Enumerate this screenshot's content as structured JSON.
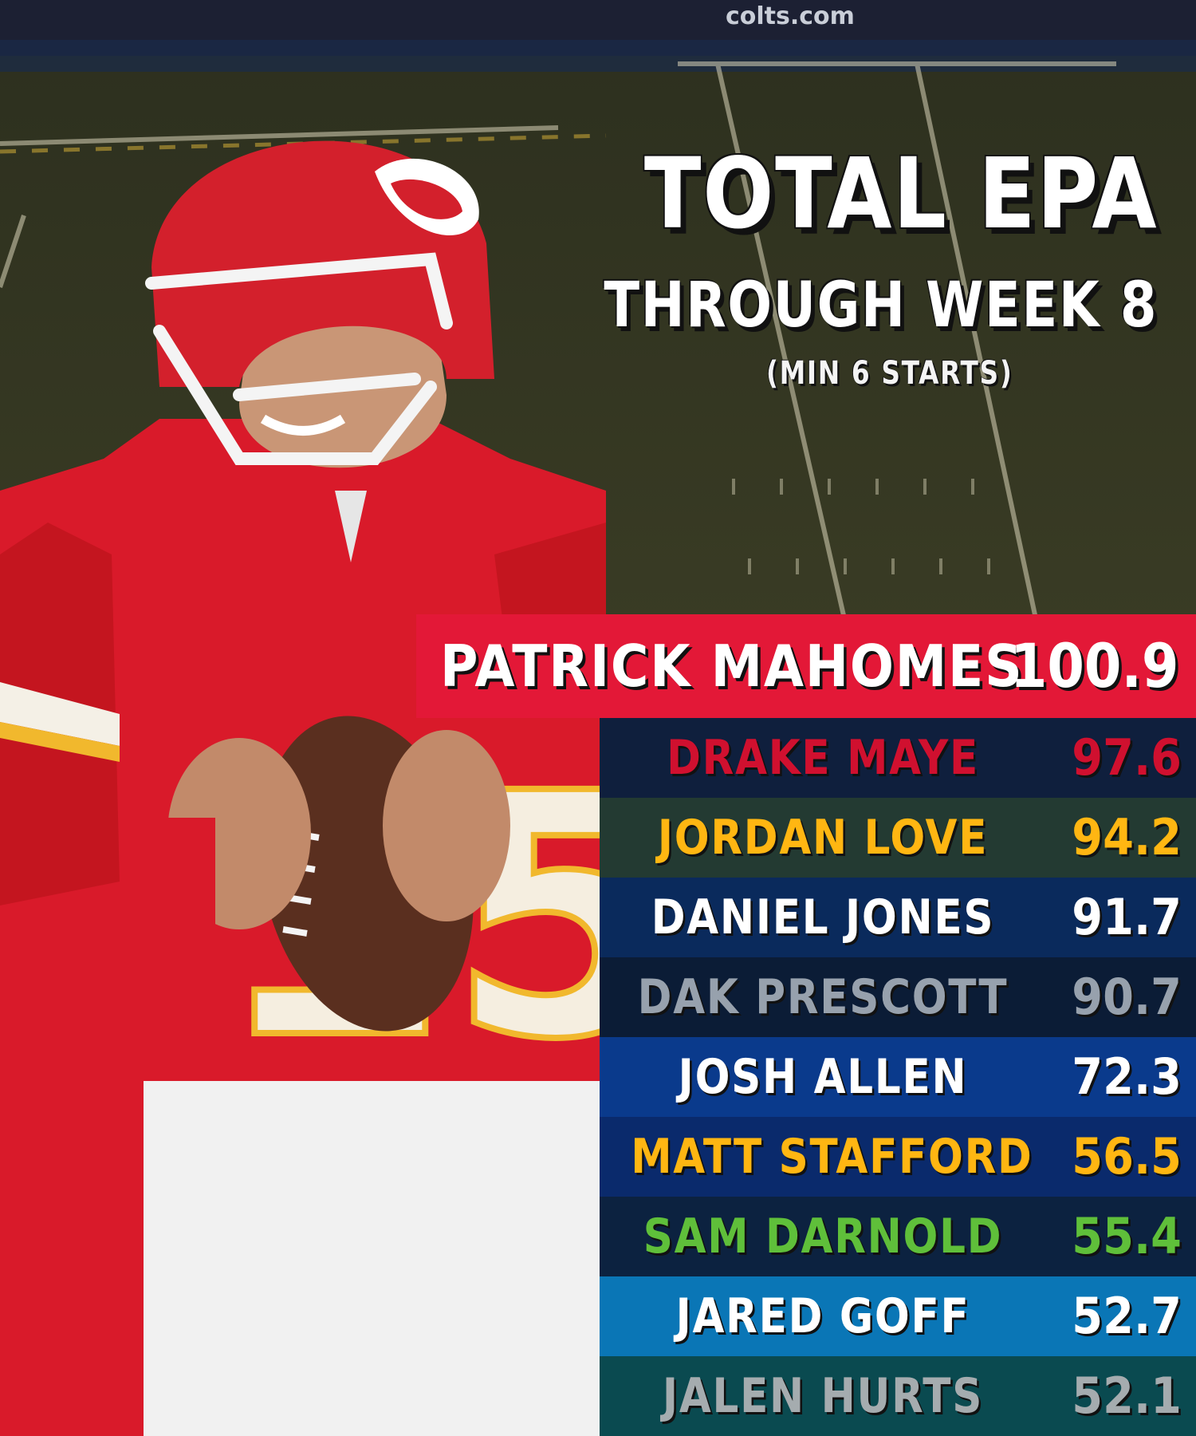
{
  "title": "TOTAL EPA",
  "subtitle": "THROUGH WEEK 8",
  "note": "(MIN 6 STARTS)",
  "field_signage": "colts.com",
  "leader": {
    "name": "PATRICK MAHOMES",
    "value": "100.9",
    "bar_color": "#e31837",
    "text_color": "#ffffff"
  },
  "rankings": [
    {
      "name": "DRAKE MAYE",
      "value": "97.6",
      "bg": "#0f1f3d",
      "color": "#d0102f"
    },
    {
      "name": "JORDAN LOVE",
      "value": "94.2",
      "bg": "#233a32",
      "color": "#ffb612"
    },
    {
      "name": "DANIEL JONES",
      "value": "91.7",
      "bg": "#0a2a5c",
      "color": "#ffffff"
    },
    {
      "name": "DAK PRESCOTT",
      "value": "90.7",
      "bg": "#0b1c36",
      "color": "#97a1ad"
    },
    {
      "name": "JOSH ALLEN",
      "value": "72.3",
      "bg": "#0a3a8c",
      "color": "#ffffff"
    },
    {
      "name": "MATT STAFFORD",
      "value": "56.5",
      "bg": "#0a2a6c",
      "color": "#ffb612"
    },
    {
      "name": "SAM DARNOLD",
      "value": "55.4",
      "bg": "#0c2240",
      "color": "#5fbf3a"
    },
    {
      "name": "JARED GOFF",
      "value": "52.7",
      "bg": "#0a76b6",
      "color": "#ffffff"
    },
    {
      "name": "JALEN HURTS",
      "value": "52.1",
      "bg": "#0a4a50",
      "color": "#a5acaf"
    }
  ]
}
